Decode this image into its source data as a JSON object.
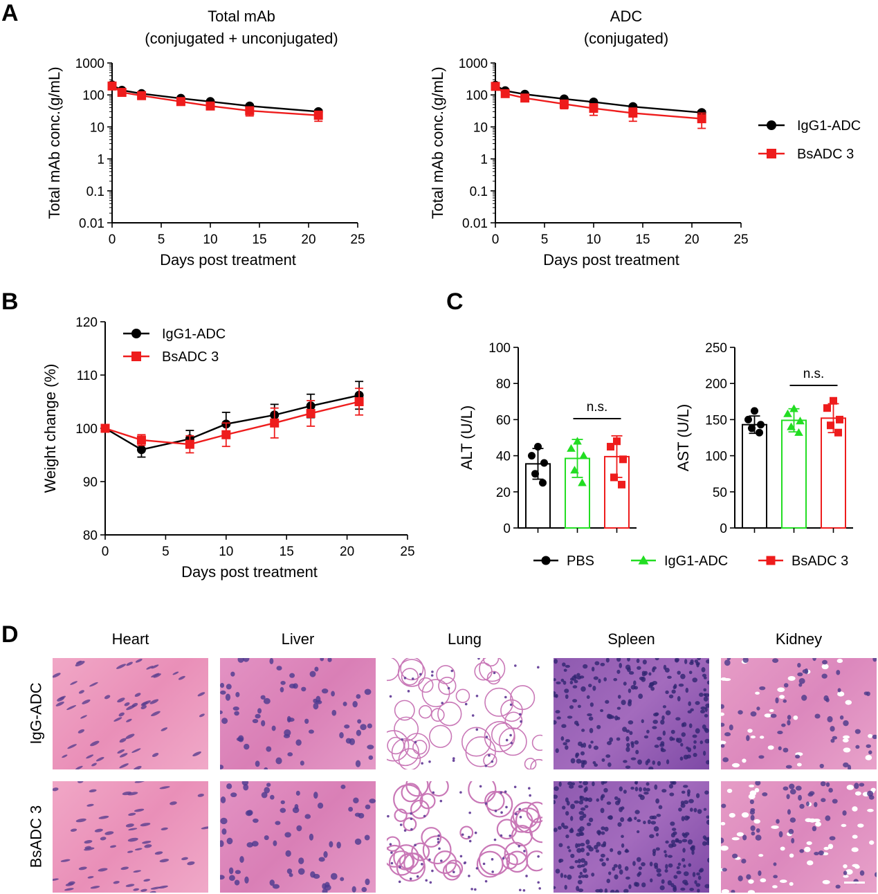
{
  "panel_labels": [
    "A",
    "B",
    "C",
    "D"
  ],
  "colors": {
    "igg1": "#000000",
    "bsadc": "#ee1c1c",
    "pbs": "#000000",
    "igg1_green": "#22dd22",
    "bsadc_red": "#ee1c1c"
  },
  "chart_data": [
    {
      "id": "A1",
      "type": "line",
      "title": "Total mAb",
      "subtitle": "(conjugated + unconjugated)",
      "xlabel": "Days post treatment",
      "ylabel": "Total mAb conc.(g/mL)",
      "yscale": "log",
      "xlim": [
        0,
        25
      ],
      "ylim": [
        0.01,
        1000
      ],
      "xticks": [
        0,
        5,
        10,
        15,
        20,
        25
      ],
      "yticks": [
        0.01,
        0.1,
        1,
        10,
        100,
        1000
      ],
      "ytick_labels": [
        "0.01",
        "0.1",
        "1",
        "10",
        "100",
        "1000"
      ],
      "x": [
        0,
        1,
        3,
        7,
        10,
        14,
        21
      ],
      "series": [
        {
          "name": "IgG1-ADC",
          "color": "#000000",
          "marker": "circle",
          "values": [
            205,
            140,
            110,
            78,
            62,
            45,
            30
          ],
          "err": [
            15,
            10,
            8,
            6,
            5,
            5,
            4
          ]
        },
        {
          "name": "BsADC 3",
          "color": "#ee1c1c",
          "marker": "square",
          "values": [
            190,
            120,
            95,
            62,
            45,
            32,
            23
          ],
          "err": [
            20,
            20,
            15,
            12,
            10,
            10,
            8
          ]
        }
      ]
    },
    {
      "id": "A2",
      "type": "line",
      "title": "ADC",
      "subtitle": "(conjugated)",
      "xlabel": "Days post treatment",
      "ylabel": "Total mAb conc.(g/mL)",
      "yscale": "log",
      "xlim": [
        0,
        25
      ],
      "ylim": [
        0.01,
        1000
      ],
      "xticks": [
        0,
        5,
        10,
        15,
        20,
        25
      ],
      "yticks": [
        0.01,
        0.1,
        1,
        10,
        100,
        1000
      ],
      "ytick_labels": [
        "0.01",
        "0.1",
        "1",
        "10",
        "100",
        "1000"
      ],
      "x": [
        0,
        1,
        3,
        7,
        10,
        14,
        21
      ],
      "series": [
        {
          "name": "IgG1-ADC",
          "color": "#000000",
          "marker": "circle",
          "values": [
            200,
            135,
            105,
            75,
            60,
            43,
            28
          ],
          "err": [
            15,
            10,
            8,
            6,
            5,
            5,
            4
          ]
        },
        {
          "name": "BsADC 3",
          "color": "#ee1c1c",
          "marker": "square",
          "values": [
            185,
            110,
            80,
            52,
            38,
            27,
            18
          ],
          "err": [
            20,
            20,
            15,
            15,
            15,
            12,
            9
          ]
        }
      ],
      "legend": {
        "placement": "right",
        "entries": [
          "IgG1-ADC",
          "BsADC 3"
        ]
      }
    },
    {
      "id": "B",
      "type": "line",
      "xlabel": "Days post treatment",
      "ylabel": "Weight change (%)",
      "xlim": [
        0,
        25
      ],
      "ylim": [
        80,
        120
      ],
      "xticks": [
        0,
        5,
        10,
        15,
        20,
        25
      ],
      "yticks": [
        80,
        90,
        100,
        110,
        120
      ],
      "x": [
        0,
        3,
        7,
        10,
        14,
        17,
        21
      ],
      "series": [
        {
          "name": "IgG1-ADC",
          "color": "#000000",
          "marker": "circle",
          "values": [
            100,
            96,
            98,
            100.8,
            102.5,
            104.2,
            106.2
          ],
          "err": [
            0.3,
            1.4,
            1.6,
            2.2,
            2.0,
            2.2,
            2.6
          ]
        },
        {
          "name": "BsADC 3",
          "color": "#ee1c1c",
          "marker": "square",
          "values": [
            100,
            97.8,
            97,
            98.8,
            101,
            102.8,
            105
          ],
          "err": [
            0.3,
            1.0,
            1.6,
            2.2,
            2.8,
            2.4,
            2.5
          ]
        }
      ],
      "legend": {
        "placement": "top-left",
        "entries": [
          "IgG1-ADC",
          "BsADC 3"
        ]
      }
    },
    {
      "id": "C1",
      "type": "bar",
      "ylabel": "ALT (U/L)",
      "ylim": [
        0,
        100
      ],
      "yticks": [
        0,
        20,
        40,
        60,
        80,
        100
      ],
      "categories": [
        "PBS",
        "IgG1-ADC",
        "BsADC 3"
      ],
      "values": [
        35.5,
        38.5,
        39.5
      ],
      "err": [
        8.5,
        10.5,
        11.5
      ],
      "points": [
        [
          45,
          40,
          36,
          30,
          25
        ],
        [
          48,
          44,
          40,
          32,
          25
        ],
        [
          48,
          45,
          38,
          28,
          24
        ]
      ],
      "annotation": "n.s."
    },
    {
      "id": "C2",
      "type": "bar",
      "ylabel": "AST (U/L)",
      "ylim": [
        0,
        250
      ],
      "yticks": [
        0,
        50,
        100,
        150,
        200,
        250
      ],
      "categories": [
        "PBS",
        "IgG1-ADC",
        "BsADC 3"
      ],
      "values": [
        143,
        149,
        152
      ],
      "err": [
        12,
        16,
        20
      ],
      "points": [
        [
          162,
          150,
          143,
          138,
          132
        ],
        [
          165,
          158,
          148,
          140,
          132
        ],
        [
          176,
          166,
          150,
          142,
          132
        ]
      ],
      "annotation": "n.s.",
      "legend": {
        "placement": "bottom",
        "entries": [
          "PBS",
          "IgG1-ADC",
          "BsADC 3"
        ]
      }
    }
  ],
  "histology": {
    "columns": [
      "Heart",
      "Liver",
      "Lung",
      "Spleen",
      "Kidney"
    ],
    "rows": [
      "IgG-ADC",
      "BsADC 3"
    ]
  }
}
